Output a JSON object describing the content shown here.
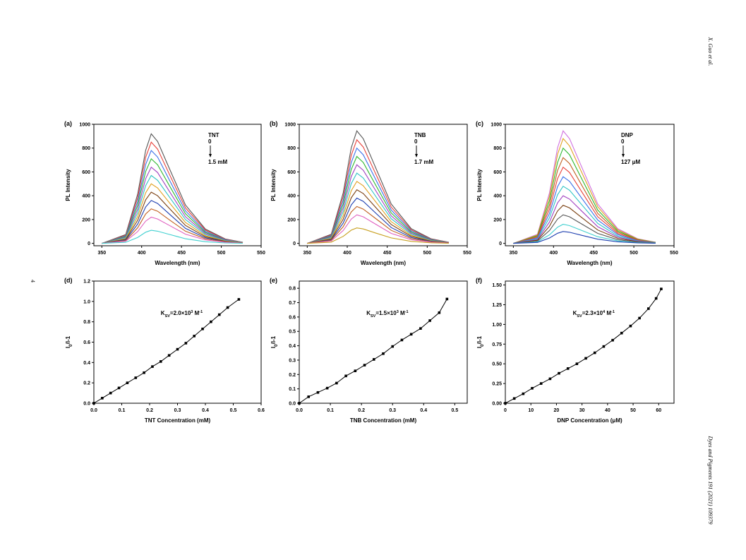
{
  "header": "X. Guo et al.",
  "page_number": "4",
  "footer": "Dyes and Pigments 191 (2021) 109379",
  "chart_data": [
    {
      "type": "line",
      "panel": "(a)",
      "xlabel": "Wavelength (nm)",
      "ylabel": "PL Intensity",
      "annotation": [
        "TNT",
        "0",
        "1.5 mM"
      ],
      "xlim": [
        340,
        550
      ],
      "ylim": [
        -20,
        1000
      ],
      "xticks": [
        350,
        400,
        450,
        500,
        550
      ],
      "yticks": [
        0,
        200,
        400,
        600,
        800,
        1000
      ],
      "x": [
        350,
        380,
        395,
        405,
        412,
        420,
        435,
        455,
        480,
        505,
        527
      ],
      "series": [
        {
          "color": "#555555",
          "values": [
            0,
            74,
            414,
            782,
            920,
            856,
            626,
            322,
            120,
            37,
            9
          ]
        },
        {
          "color": "#e8413a",
          "values": [
            0,
            68,
            383,
            723,
            850,
            791,
            578,
            298,
            111,
            34,
            9
          ]
        },
        {
          "color": "#3a6fe8",
          "values": [
            0,
            62,
            351,
            663,
            780,
            725,
            530,
            273,
            101,
            31,
            8
          ]
        },
        {
          "color": "#2fb82f",
          "values": [
            0,
            57,
            320,
            604,
            710,
            660,
            483,
            249,
            92,
            28,
            7
          ]
        },
        {
          "color": "#a040c0",
          "values": [
            0,
            51,
            288,
            544,
            640,
            595,
            435,
            224,
            83,
            26,
            6
          ]
        },
        {
          "color": "#2ec4c4",
          "values": [
            0,
            46,
            257,
            485,
            570,
            530,
            388,
            200,
            74,
            23,
            6
          ]
        },
        {
          "color": "#e0a020",
          "values": [
            0,
            40,
            225,
            425,
            500,
            465,
            340,
            175,
            65,
            20,
            5
          ]
        },
        {
          "color": "#7a3f10",
          "values": [
            0,
            34,
            194,
            366,
            430,
            400,
            292,
            151,
            56,
            17,
            4
          ]
        },
        {
          "color": "#1e3fb0",
          "values": [
            0,
            29,
            162,
            306,
            360,
            335,
            245,
            126,
            47,
            14,
            4
          ]
        },
        {
          "color": "#c06020",
          "values": [
            0,
            23,
            131,
            247,
            290,
            270,
            197,
            102,
            38,
            12,
            3
          ]
        },
        {
          "color": "#e060c0",
          "values": [
            0,
            18,
            99,
            187,
            220,
            205,
            150,
            77,
            29,
            9,
            2
          ]
        },
        {
          "color": "#40d0d0",
          "values": [
            0,
            9,
            50,
            94,
            110,
            102,
            75,
            39,
            14,
            4,
            1
          ]
        }
      ]
    },
    {
      "type": "line",
      "panel": "(b)",
      "xlabel": "Wavelength (nm)",
      "ylabel": "PL Intensity",
      "annotation": [
        "TNB",
        "0",
        "1.7 mM"
      ],
      "xlim": [
        340,
        550
      ],
      "ylim": [
        -20,
        1000
      ],
      "xticks": [
        350,
        400,
        450,
        500,
        550
      ],
      "yticks": [
        0,
        200,
        400,
        600,
        800,
        1000
      ],
      "x": [
        350,
        380,
        395,
        405,
        412,
        420,
        435,
        455,
        480,
        505,
        527
      ],
      "series": [
        {
          "color": "#555555",
          "values": [
            0,
            76,
            425,
            803,
            945,
            879,
            643,
            331,
            123,
            38,
            9
          ]
        },
        {
          "color": "#e8413a",
          "values": [
            0,
            70,
            392,
            740,
            870,
            809,
            592,
            305,
            113,
            35,
            9
          ]
        },
        {
          "color": "#3a6fe8",
          "values": [
            0,
            64,
            360,
            680,
            800,
            744,
            544,
            280,
            104,
            32,
            8
          ]
        },
        {
          "color": "#2fb82f",
          "values": [
            0,
            58,
            329,
            621,
            730,
            679,
            496,
            256,
            95,
            29,
            7
          ]
        },
        {
          "color": "#a040c0",
          "values": [
            0,
            53,
            297,
            561,
            660,
            614,
            449,
            231,
            86,
            26,
            7
          ]
        },
        {
          "color": "#2ec4c4",
          "values": [
            0,
            47,
            266,
            502,
            590,
            549,
            401,
            207,
            77,
            24,
            6
          ]
        },
        {
          "color": "#e0a020",
          "values": [
            0,
            42,
            234,
            442,
            520,
            484,
            354,
            182,
            68,
            21,
            5
          ]
        },
        {
          "color": "#7a3f10",
          "values": [
            0,
            36,
            203,
            383,
            450,
            419,
            306,
            158,
            59,
            18,
            5
          ]
        },
        {
          "color": "#1e3fb0",
          "values": [
            0,
            30,
            171,
            323,
            380,
            353,
            258,
            133,
            49,
            15,
            4
          ]
        },
        {
          "color": "#c06020",
          "values": [
            0,
            25,
            140,
            264,
            310,
            288,
            211,
            109,
            40,
            12,
            3
          ]
        },
        {
          "color": "#e060c0",
          "values": [
            0,
            19,
            108,
            204,
            240,
            223,
            163,
            84,
            31,
            10,
            2
          ]
        },
        {
          "color": "#c8a020",
          "values": [
            0,
            10,
            59,
            111,
            130,
            121,
            88,
            46,
            17,
            5,
            1
          ]
        }
      ]
    },
    {
      "type": "line",
      "panel": "(c)",
      "xlabel": "Wavelength (nm)",
      "ylabel": "PL Intensity",
      "annotation": [
        "DNP",
        "0",
        "127 μM"
      ],
      "xlim": [
        340,
        550
      ],
      "ylim": [
        -20,
        1000
      ],
      "xticks": [
        350,
        400,
        450,
        500,
        550
      ],
      "yticks": [
        0,
        200,
        400,
        600,
        800,
        1000
      ],
      "x": [
        350,
        380,
        395,
        405,
        412,
        420,
        435,
        455,
        480,
        505,
        527
      ],
      "series": [
        {
          "color": "#d070e0",
          "values": [
            0,
            76,
            425,
            803,
            945,
            879,
            643,
            331,
            123,
            38,
            9
          ]
        },
        {
          "color": "#e0a020",
          "values": [
            0,
            70,
            396,
            748,
            880,
            818,
            598,
            308,
            114,
            35,
            9
          ]
        },
        {
          "color": "#2fb82f",
          "values": [
            0,
            64,
            360,
            680,
            800,
            744,
            544,
            280,
            104,
            32,
            8
          ]
        },
        {
          "color": "#c06020",
          "values": [
            0,
            58,
            324,
            612,
            720,
            670,
            490,
            252,
            94,
            29,
            7
          ]
        },
        {
          "color": "#e8413a",
          "values": [
            0,
            51,
            288,
            544,
            640,
            595,
            435,
            224,
            83,
            26,
            6
          ]
        },
        {
          "color": "#3a6fe8",
          "values": [
            0,
            45,
            252,
            476,
            560,
            521,
            381,
            196,
            73,
            22,
            6
          ]
        },
        {
          "color": "#2ec4c4",
          "values": [
            0,
            38,
            216,
            408,
            480,
            446,
            326,
            168,
            62,
            19,
            5
          ]
        },
        {
          "color": "#a040c0",
          "values": [
            0,
            32,
            180,
            340,
            400,
            372,
            272,
            140,
            52,
            16,
            4
          ]
        },
        {
          "color": "#7a3f10",
          "values": [
            0,
            26,
            144,
            272,
            320,
            298,
            218,
            112,
            42,
            13,
            3
          ]
        },
        {
          "color": "#555555",
          "values": [
            0,
            19,
            108,
            204,
            240,
            223,
            163,
            84,
            31,
            10,
            2
          ]
        },
        {
          "color": "#40d0d0",
          "values": [
            0,
            13,
            72,
            136,
            160,
            149,
            109,
            56,
            21,
            6,
            2
          ]
        },
        {
          "color": "#1e3fb0",
          "values": [
            0,
            8,
            45,
            85,
            100,
            93,
            68,
            35,
            13,
            4,
            1
          ]
        }
      ]
    },
    {
      "type": "line",
      "panel": "(d)",
      "xlabel": "TNT Concentration (mM)",
      "ylabel": [
        "I",
        "0",
        "/I-1"
      ],
      "annotation": [
        "K",
        "SV",
        "=2.0×10",
        "3",
        " M",
        "-1"
      ],
      "color": "#000000",
      "marker": "square",
      "xlim": [
        0,
        0.6
      ],
      "ylim": [
        0,
        1.2
      ],
      "xticks": [
        {
          "value": 0,
          "label": "0.0"
        },
        0.1,
        0.2,
        0.3,
        0.4,
        0.5,
        0.6
      ],
      "yticks": [
        {
          "value": 0,
          "label": "0.0"
        },
        0.2,
        0.4,
        0.6,
        0.8,
        {
          "value": 1,
          "label": "1.0"
        },
        1.2
      ],
      "x": [
        0,
        0.03,
        0.06,
        0.09,
        0.12,
        0.15,
        0.18,
        0.21,
        0.24,
        0.27,
        0.3,
        0.33,
        0.36,
        0.39,
        0.42,
        0.45,
        0.48,
        0.52
      ],
      "values": [
        0,
        0.05,
        0.1,
        0.15,
        0.2,
        0.25,
        0.3,
        0.36,
        0.41,
        0.47,
        0.53,
        0.59,
        0.66,
        0.73,
        0.8,
        0.87,
        0.94,
        1.02
      ]
    },
    {
      "type": "line",
      "panel": "(e)",
      "xlabel": "TNB Concentration (mM)",
      "ylabel": [
        "I",
        "0",
        "/I-1"
      ],
      "annotation": [
        "K",
        "SV",
        "=1.5×10",
        "3",
        " M",
        "-1"
      ],
      "color": "#000000",
      "marker": "square",
      "xlim": [
        0,
        0.54
      ],
      "ylim": [
        0,
        0.85
      ],
      "xticks": [
        {
          "value": 0,
          "label": "0.0"
        },
        0.1,
        0.2,
        0.3,
        0.4,
        0.5
      ],
      "yticks": [
        {
          "value": 0,
          "label": "0.0"
        },
        0.1,
        0.2,
        0.3,
        0.4,
        0.5,
        0.6,
        0.7,
        0.8
      ],
      "x": [
        0,
        0.03,
        0.06,
        0.09,
        0.12,
        0.15,
        0.18,
        0.21,
        0.24,
        0.27,
        0.3,
        0.33,
        0.36,
        0.39,
        0.42,
        0.45,
        0.475
      ],
      "values": [
        0,
        0.045,
        0.075,
        0.105,
        0.14,
        0.19,
        0.225,
        0.265,
        0.305,
        0.345,
        0.395,
        0.44,
        0.48,
        0.52,
        0.575,
        0.63,
        0.725
      ]
    },
    {
      "type": "line",
      "panel": "(f)",
      "xlabel": "DNP Concentration (μM)",
      "ylabel": [
        "I",
        "0",
        "/I-1"
      ],
      "annotation": [
        "K",
        "SV",
        "=2.3×10",
        "4",
        " M",
        "-1"
      ],
      "color": "#000000",
      "marker": "square",
      "xlim": [
        0,
        66
      ],
      "ylim": [
        0,
        1.55
      ],
      "xticks": [
        0,
        10,
        20,
        30,
        40,
        50,
        60
      ],
      "yticks": [
        {
          "value": 0,
          "label": "0.00"
        },
        0.25,
        {
          "value": 0.5,
          "label": "0.50"
        },
        0.75,
        {
          "value": 1,
          "label": "1.00"
        },
        1.25,
        {
          "value": 1.5,
          "label": "1.50"
        }
      ],
      "x": [
        0,
        3.5,
        7,
        10.5,
        14,
        17.5,
        21,
        24.5,
        28,
        31.5,
        35,
        38.5,
        42,
        45.5,
        49,
        52.5,
        56,
        59,
        61
      ],
      "values": [
        0,
        0.06,
        0.12,
        0.19,
        0.25,
        0.31,
        0.38,
        0.44,
        0.5,
        0.57,
        0.64,
        0.72,
        0.8,
        0.89,
        0.98,
        1.08,
        1.2,
        1.33,
        1.45
      ]
    }
  ]
}
